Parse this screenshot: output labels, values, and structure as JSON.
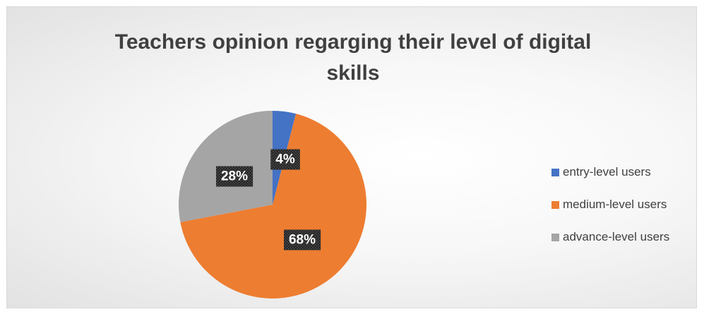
{
  "chart_data": {
    "type": "pie",
    "title_lines": [
      "Teachers opinion regarging their level of digital",
      "skills"
    ],
    "categories": [
      "entry-level users",
      "medium-level users",
      "advance-level users"
    ],
    "values": [
      4,
      68,
      28
    ],
    "data_labels": [
      "4%",
      "68%",
      "28%"
    ],
    "colors": [
      "#4472c4",
      "#ed7d31",
      "#a5a5a5"
    ],
    "legend_position": "right",
    "start_angle": "12 o'clock",
    "direction": "clockwise"
  }
}
